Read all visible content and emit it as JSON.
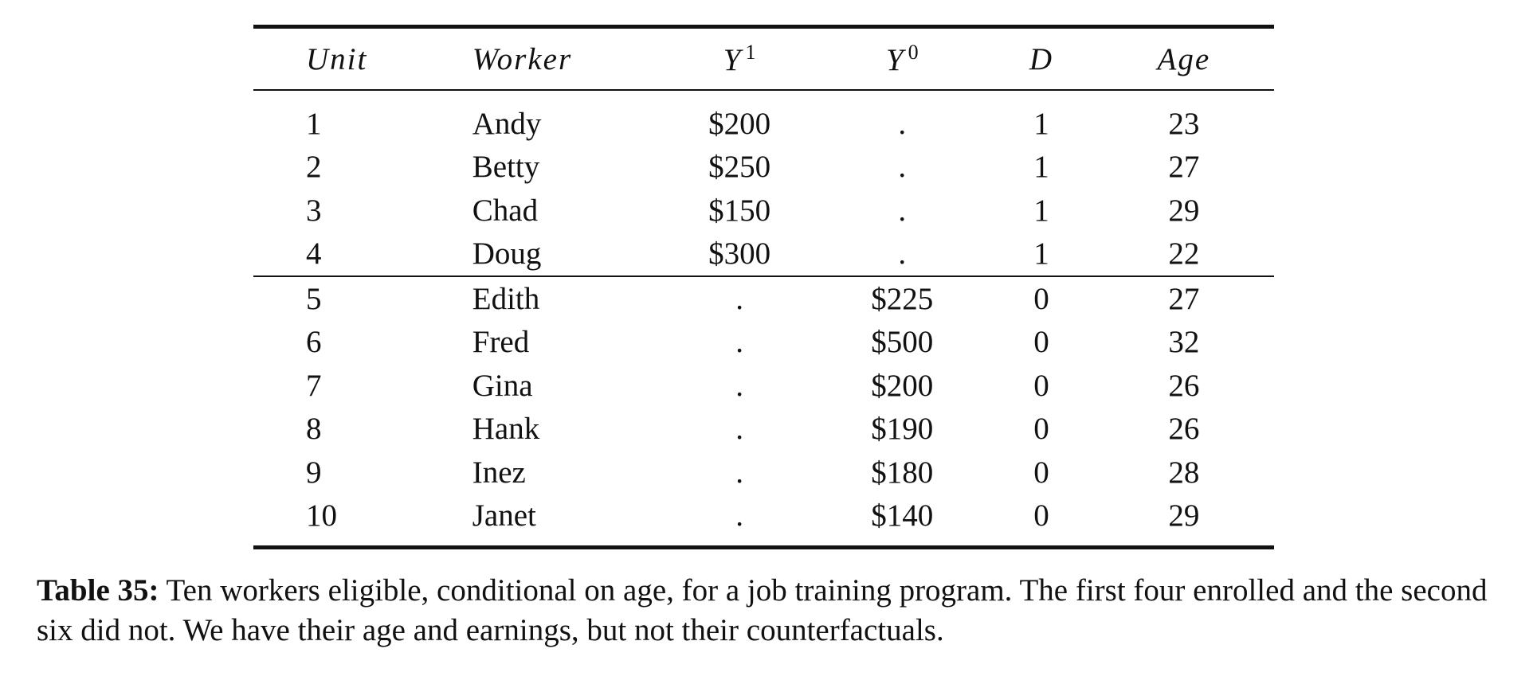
{
  "table": {
    "headers": {
      "unit": "Unit",
      "worker": "Worker",
      "y1": "Y",
      "y1_sup": "1",
      "y0": "Y",
      "y0_sup": "0",
      "d": "D",
      "age": "Age"
    },
    "rows": [
      {
        "unit": "1",
        "worker": "Andy",
        "y1": "$200",
        "y0": ".",
        "d": "1",
        "age": "23"
      },
      {
        "unit": "2",
        "worker": "Betty",
        "y1": "$250",
        "y0": ".",
        "d": "1",
        "age": "27"
      },
      {
        "unit": "3",
        "worker": "Chad",
        "y1": "$150",
        "y0": ".",
        "d": "1",
        "age": "29"
      },
      {
        "unit": "4",
        "worker": "Doug",
        "y1": "$300",
        "y0": ".",
        "d": "1",
        "age": "22"
      },
      {
        "unit": "5",
        "worker": "Edith",
        "y1": ".",
        "y0": "$225",
        "d": "0",
        "age": "27"
      },
      {
        "unit": "6",
        "worker": "Fred",
        "y1": ".",
        "y0": "$500",
        "d": "0",
        "age": "32"
      },
      {
        "unit": "7",
        "worker": "Gina",
        "y1": ".",
        "y0": "$200",
        "d": "0",
        "age": "26"
      },
      {
        "unit": "8",
        "worker": "Hank",
        "y1": ".",
        "y0": "$190",
        "d": "0",
        "age": "26"
      },
      {
        "unit": "9",
        "worker": "Inez",
        "y1": ".",
        "y0": "$180",
        "d": "0",
        "age": "28"
      },
      {
        "unit": "10",
        "worker": "Janet",
        "y1": ".",
        "y0": "$140",
        "d": "0",
        "age": "29"
      }
    ]
  },
  "caption": {
    "label": "Table 35:",
    "text": " Ten workers eligible, conditional on age, for a job training program. The first four enrolled and the second six did not. We have their age and earnings, but not their counterfactuals."
  }
}
